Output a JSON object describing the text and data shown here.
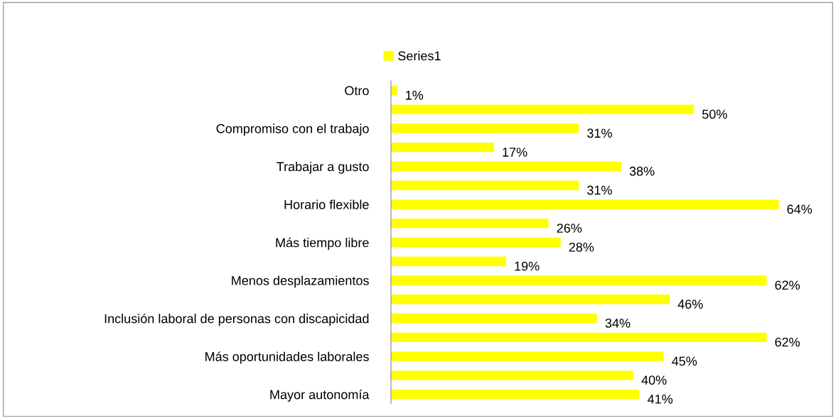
{
  "chart_data": {
    "type": "bar",
    "orientation": "horizontal",
    "categories": [
      "Otro",
      null,
      "Compromiso con el trabajo",
      null,
      "Trabajar a gusto",
      null,
      "Horario flexible",
      null,
      "Más tiempo libre",
      null,
      "Menos desplazamientos",
      null,
      "Inclusión laboral de personas con discapicidad",
      null,
      "Más oportunidades laborales",
      null,
      "Mayor autonomía"
    ],
    "series": [
      {
        "name": "Series1",
        "color": "#ffff00",
        "values": [
          1,
          50,
          31,
          17,
          38,
          31,
          64,
          26,
          28,
          19,
          62,
          46,
          34,
          62,
          45,
          40,
          41
        ],
        "value_labels": [
          "1%",
          "50%",
          "31%",
          "17%",
          "38%",
          "31%",
          "64%",
          "26%",
          "28%",
          "19%",
          "62%",
          "46%",
          "34%",
          "62%",
          "45%",
          "40%",
          "41%"
        ]
      }
    ],
    "legend": "top",
    "grid": false
  }
}
